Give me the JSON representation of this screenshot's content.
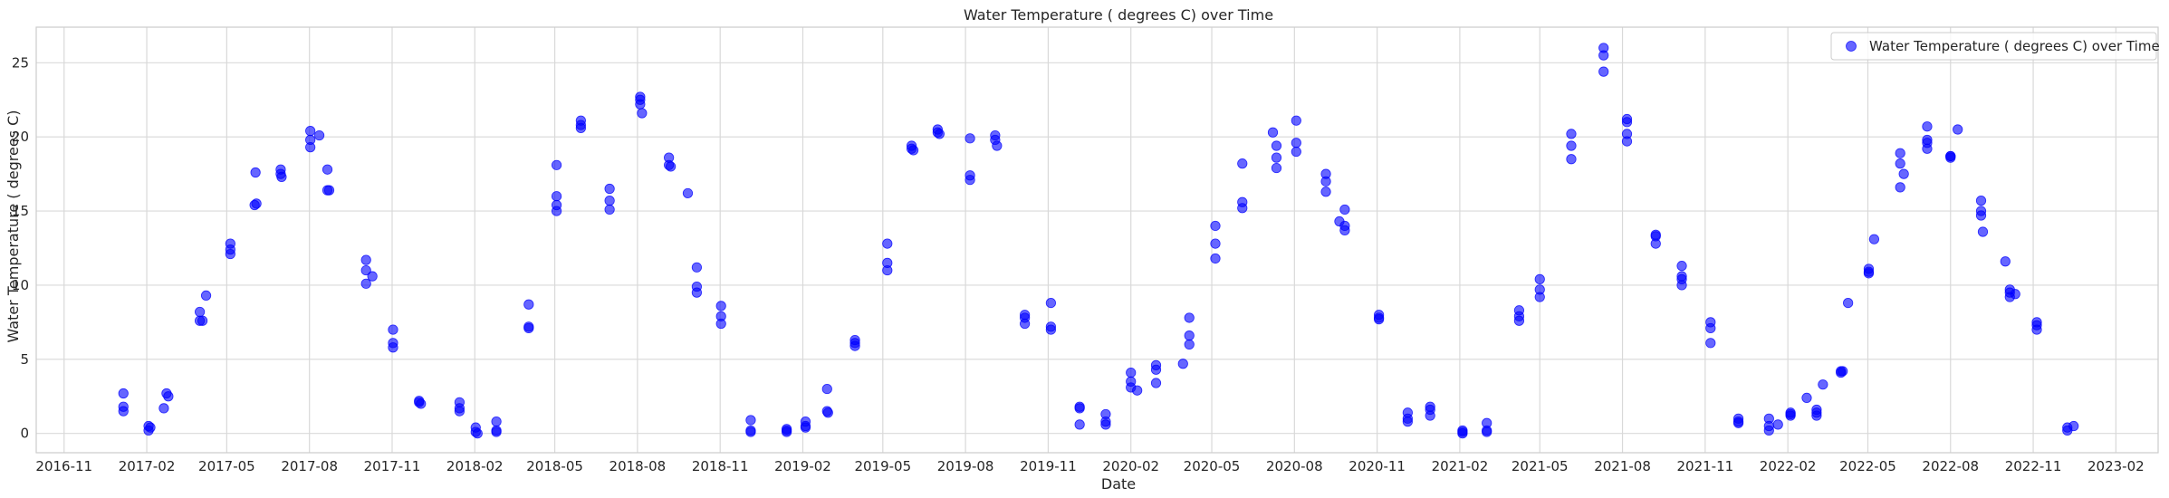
{
  "chart_data": {
    "type": "scatter",
    "title": "Water Temperature ( degrees C) over Time",
    "xlabel": "Date",
    "ylabel": "Water Temperature ( degrees C)",
    "x_axis_type": "date",
    "xlim": [
      "2016-10-01",
      "2023-03-20"
    ],
    "ylim": [
      -1.3,
      27.4
    ],
    "x_ticks": [
      "2016-11-01",
      "2017-02-01",
      "2017-05-01",
      "2017-08-01",
      "2017-11-01",
      "2018-02-01",
      "2018-05-01",
      "2018-08-01",
      "2018-11-01",
      "2019-02-01",
      "2019-05-01",
      "2019-08-01",
      "2019-11-01",
      "2020-02-01",
      "2020-05-01",
      "2020-08-01",
      "2020-11-01",
      "2021-02-01",
      "2021-05-01",
      "2021-08-01",
      "2021-11-01",
      "2022-02-01",
      "2022-05-01",
      "2022-08-01",
      "2022-11-01",
      "2023-02-01"
    ],
    "x_tick_labels": [
      "2016-11",
      "2017-02",
      "2017-05",
      "2017-08",
      "2017-11",
      "2018-02",
      "2018-05",
      "2018-08",
      "2018-11",
      "2019-02",
      "2019-05",
      "2019-08",
      "2019-11",
      "2020-02",
      "2020-05",
      "2020-08",
      "2020-11",
      "2021-02",
      "2021-05",
      "2021-08",
      "2021-11",
      "2022-02",
      "2022-05",
      "2022-08",
      "2022-11",
      "2023-02"
    ],
    "y_ticks": [
      0,
      5,
      10,
      15,
      20,
      25
    ],
    "grid": true,
    "legend_placement": "top-right",
    "marker_color": "#0000ff",
    "marker_opacity": 0.6,
    "series": [
      {
        "name": "Water Temperature ( degrees C) over Time",
        "points": [
          [
            "2017-01-06",
            2.7
          ],
          [
            "2017-01-06",
            1.8
          ],
          [
            "2017-01-06",
            1.5
          ],
          [
            "2017-02-03",
            0.2
          ],
          [
            "2017-02-03",
            0.5
          ],
          [
            "2017-02-05",
            0.4
          ],
          [
            "2017-02-20",
            1.7
          ],
          [
            "2017-02-23",
            2.7
          ],
          [
            "2017-02-25",
            2.5
          ],
          [
            "2017-04-01",
            7.6
          ],
          [
            "2017-04-01",
            8.2
          ],
          [
            "2017-04-04",
            7.6
          ],
          [
            "2017-04-08",
            9.3
          ],
          [
            "2017-05-05",
            12.8
          ],
          [
            "2017-05-05",
            12.4
          ],
          [
            "2017-05-05",
            12.1
          ],
          [
            "2017-06-01",
            15.4
          ],
          [
            "2017-06-02",
            17.6
          ],
          [
            "2017-06-03",
            15.5
          ],
          [
            "2017-06-30",
            17.8
          ],
          [
            "2017-06-30",
            17.5
          ],
          [
            "2017-07-01",
            17.3
          ],
          [
            "2017-08-02",
            20.4
          ],
          [
            "2017-08-02",
            19.8
          ],
          [
            "2017-08-02",
            19.3
          ],
          [
            "2017-08-12",
            20.1
          ],
          [
            "2017-08-21",
            17.8
          ],
          [
            "2017-08-21",
            16.4
          ],
          [
            "2017-08-23",
            16.4
          ],
          [
            "2017-10-03",
            11.7
          ],
          [
            "2017-10-03",
            11.0
          ],
          [
            "2017-10-03",
            10.1
          ],
          [
            "2017-10-10",
            10.6
          ],
          [
            "2017-11-02",
            7.0
          ],
          [
            "2017-11-02",
            6.1
          ],
          [
            "2017-11-02",
            5.8
          ],
          [
            "2017-12-01",
            2.2
          ],
          [
            "2017-12-01",
            2.1
          ],
          [
            "2017-12-03",
            2.0
          ],
          [
            "2018-01-15",
            2.1
          ],
          [
            "2018-01-15",
            1.7
          ],
          [
            "2018-01-15",
            1.5
          ],
          [
            "2018-02-02",
            0.4
          ],
          [
            "2018-02-02",
            0.1
          ],
          [
            "2018-02-04",
            0.0
          ],
          [
            "2018-02-25",
            0.8
          ],
          [
            "2018-02-25",
            0.2
          ],
          [
            "2018-02-25",
            0.1
          ],
          [
            "2018-04-02",
            8.7
          ],
          [
            "2018-04-02",
            7.2
          ],
          [
            "2018-04-02",
            7.1
          ],
          [
            "2018-05-03",
            18.1
          ],
          [
            "2018-05-03",
            16.0
          ],
          [
            "2018-05-03",
            15.4
          ],
          [
            "2018-05-03",
            15.0
          ],
          [
            "2018-05-30",
            21.1
          ],
          [
            "2018-05-30",
            20.8
          ],
          [
            "2018-05-30",
            20.6
          ],
          [
            "2018-07-01",
            16.5
          ],
          [
            "2018-07-01",
            15.7
          ],
          [
            "2018-07-01",
            15.1
          ],
          [
            "2018-08-04",
            22.7
          ],
          [
            "2018-08-04",
            22.5
          ],
          [
            "2018-08-04",
            22.2
          ],
          [
            "2018-08-06",
            21.6
          ],
          [
            "2018-09-05",
            18.6
          ],
          [
            "2018-09-05",
            18.1
          ],
          [
            "2018-09-07",
            18.0
          ],
          [
            "2018-09-26",
            16.2
          ],
          [
            "2018-10-06",
            11.2
          ],
          [
            "2018-10-06",
            9.9
          ],
          [
            "2018-10-06",
            9.5
          ],
          [
            "2018-11-02",
            8.6
          ],
          [
            "2018-11-02",
            7.9
          ],
          [
            "2018-11-02",
            7.4
          ],
          [
            "2018-12-05",
            0.9
          ],
          [
            "2018-12-05",
            0.2
          ],
          [
            "2018-12-05",
            0.1
          ],
          [
            "2019-01-14",
            0.3
          ],
          [
            "2019-01-14",
            0.2
          ],
          [
            "2019-01-14",
            0.1
          ],
          [
            "2019-02-04",
            0.8
          ],
          [
            "2019-02-04",
            0.5
          ],
          [
            "2019-02-04",
            0.4
          ],
          [
            "2019-02-28",
            3.0
          ],
          [
            "2019-02-28",
            1.5
          ],
          [
            "2019-03-01",
            1.4
          ],
          [
            "2019-03-31",
            6.3
          ],
          [
            "2019-03-31",
            6.1
          ],
          [
            "2019-03-31",
            5.9
          ],
          [
            "2019-05-06",
            12.8
          ],
          [
            "2019-05-06",
            11.5
          ],
          [
            "2019-05-06",
            11.0
          ],
          [
            "2019-06-02",
            19.4
          ],
          [
            "2019-06-02",
            19.2
          ],
          [
            "2019-06-04",
            19.1
          ],
          [
            "2019-07-01",
            20.5
          ],
          [
            "2019-07-01",
            20.3
          ],
          [
            "2019-07-03",
            20.2
          ],
          [
            "2019-08-06",
            19.9
          ],
          [
            "2019-08-06",
            17.4
          ],
          [
            "2019-08-06",
            17.1
          ],
          [
            "2019-09-03",
            20.1
          ],
          [
            "2019-09-03",
            19.8
          ],
          [
            "2019-09-05",
            19.4
          ],
          [
            "2019-10-06",
            8.0
          ],
          [
            "2019-10-06",
            7.8
          ],
          [
            "2019-10-06",
            7.4
          ],
          [
            "2019-11-04",
            8.8
          ],
          [
            "2019-11-04",
            7.2
          ],
          [
            "2019-11-04",
            7.0
          ],
          [
            "2019-12-06",
            1.8
          ],
          [
            "2019-12-06",
            1.7
          ],
          [
            "2019-12-06",
            0.6
          ],
          [
            "2020-01-04",
            1.3
          ],
          [
            "2020-01-04",
            0.8
          ],
          [
            "2020-01-04",
            0.6
          ],
          [
            "2020-02-01",
            4.1
          ],
          [
            "2020-02-01",
            3.5
          ],
          [
            "2020-02-01",
            3.1
          ],
          [
            "2020-02-08",
            2.9
          ],
          [
            "2020-02-29",
            4.6
          ],
          [
            "2020-02-29",
            4.3
          ],
          [
            "2020-02-29",
            3.4
          ],
          [
            "2020-03-30",
            4.7
          ],
          [
            "2020-04-06",
            7.8
          ],
          [
            "2020-04-06",
            6.6
          ],
          [
            "2020-04-06",
            6.0
          ],
          [
            "2020-05-05",
            14.0
          ],
          [
            "2020-05-05",
            12.8
          ],
          [
            "2020-05-05",
            11.8
          ],
          [
            "2020-06-04",
            18.2
          ],
          [
            "2020-06-04",
            15.6
          ],
          [
            "2020-06-04",
            15.2
          ],
          [
            "2020-07-08",
            20.3
          ],
          [
            "2020-07-12",
            19.4
          ],
          [
            "2020-07-12",
            18.6
          ],
          [
            "2020-07-12",
            17.9
          ],
          [
            "2020-08-03",
            21.1
          ],
          [
            "2020-08-03",
            19.6
          ],
          [
            "2020-08-03",
            19.0
          ],
          [
            "2020-09-05",
            17.5
          ],
          [
            "2020-09-05",
            17.0
          ],
          [
            "2020-09-05",
            16.3
          ],
          [
            "2020-09-26",
            15.1
          ],
          [
            "2020-09-20",
            14.3
          ],
          [
            "2020-09-26",
            14.0
          ],
          [
            "2020-09-26",
            13.7
          ],
          [
            "2020-11-03",
            8.0
          ],
          [
            "2020-11-03",
            7.8
          ],
          [
            "2020-11-03",
            7.7
          ],
          [
            "2020-12-05",
            1.4
          ],
          [
            "2020-12-05",
            1.0
          ],
          [
            "2020-12-05",
            0.8
          ],
          [
            "2020-12-30",
            1.8
          ],
          [
            "2020-12-30",
            1.6
          ],
          [
            "2020-12-30",
            1.2
          ],
          [
            "2021-02-04",
            0.2
          ],
          [
            "2021-02-04",
            0.1
          ],
          [
            "2021-02-04",
            0.0
          ],
          [
            "2021-03-03",
            0.7
          ],
          [
            "2021-03-03",
            0.2
          ],
          [
            "2021-03-03",
            0.1
          ],
          [
            "2021-04-08",
            8.3
          ],
          [
            "2021-04-08",
            7.9
          ],
          [
            "2021-04-08",
            7.6
          ],
          [
            "2021-05-01",
            10.4
          ],
          [
            "2021-05-01",
            9.7
          ],
          [
            "2021-05-01",
            9.2
          ],
          [
            "2021-06-05",
            20.2
          ],
          [
            "2021-06-05",
            19.4
          ],
          [
            "2021-06-05",
            18.5
          ],
          [
            "2021-07-11",
            26.0
          ],
          [
            "2021-07-11",
            25.5
          ],
          [
            "2021-07-11",
            24.4
          ],
          [
            "2021-08-06",
            21.2
          ],
          [
            "2021-08-06",
            21.0
          ],
          [
            "2021-08-06",
            20.2
          ],
          [
            "2021-08-06",
            19.7
          ],
          [
            "2021-09-07",
            13.4
          ],
          [
            "2021-09-07",
            13.3
          ],
          [
            "2021-09-07",
            12.8
          ],
          [
            "2021-10-06",
            11.3
          ],
          [
            "2021-10-06",
            10.6
          ],
          [
            "2021-10-06",
            10.4
          ],
          [
            "2021-10-06",
            10.0
          ],
          [
            "2021-11-07",
            7.5
          ],
          [
            "2021-11-07",
            7.1
          ],
          [
            "2021-11-07",
            6.1
          ],
          [
            "2021-12-08",
            1.0
          ],
          [
            "2021-12-08",
            0.8
          ],
          [
            "2021-12-08",
            0.7
          ],
          [
            "2022-01-11",
            1.0
          ],
          [
            "2022-01-11",
            0.5
          ],
          [
            "2022-01-11",
            0.2
          ],
          [
            "2022-01-21",
            0.6
          ],
          [
            "2022-02-04",
            1.4
          ],
          [
            "2022-02-04",
            1.3
          ],
          [
            "2022-02-04",
            1.2
          ],
          [
            "2022-02-22",
            2.4
          ],
          [
            "2022-03-05",
            1.6
          ],
          [
            "2022-03-05",
            1.4
          ],
          [
            "2022-03-05",
            1.2
          ],
          [
            "2022-03-12",
            3.3
          ],
          [
            "2022-04-01",
            4.2
          ],
          [
            "2022-04-01",
            4.1
          ],
          [
            "2022-04-03",
            4.2
          ],
          [
            "2022-04-09",
            8.8
          ],
          [
            "2022-05-02",
            11.1
          ],
          [
            "2022-05-02",
            10.9
          ],
          [
            "2022-05-02",
            10.8
          ],
          [
            "2022-05-08",
            13.1
          ],
          [
            "2022-06-06",
            18.9
          ],
          [
            "2022-06-06",
            18.2
          ],
          [
            "2022-06-06",
            16.6
          ],
          [
            "2022-06-10",
            17.5
          ],
          [
            "2022-07-06",
            20.7
          ],
          [
            "2022-07-06",
            19.8
          ],
          [
            "2022-07-06",
            19.6
          ],
          [
            "2022-07-06",
            19.2
          ],
          [
            "2022-08-01",
            18.7
          ],
          [
            "2022-08-01",
            18.7
          ],
          [
            "2022-08-01",
            18.6
          ],
          [
            "2022-08-09",
            20.5
          ],
          [
            "2022-09-04",
            15.7
          ],
          [
            "2022-09-04",
            15.0
          ],
          [
            "2022-09-04",
            14.7
          ],
          [
            "2022-09-06",
            13.6
          ],
          [
            "2022-10-01",
            11.6
          ],
          [
            "2022-10-06",
            9.7
          ],
          [
            "2022-10-06",
            9.5
          ],
          [
            "2022-10-06",
            9.2
          ],
          [
            "2022-10-12",
            9.4
          ],
          [
            "2022-11-05",
            7.5
          ],
          [
            "2022-11-05",
            7.3
          ],
          [
            "2022-11-05",
            7.0
          ],
          [
            "2022-12-09",
            0.4
          ],
          [
            "2022-12-09",
            0.2
          ],
          [
            "2022-12-16",
            0.5
          ]
        ]
      }
    ]
  }
}
